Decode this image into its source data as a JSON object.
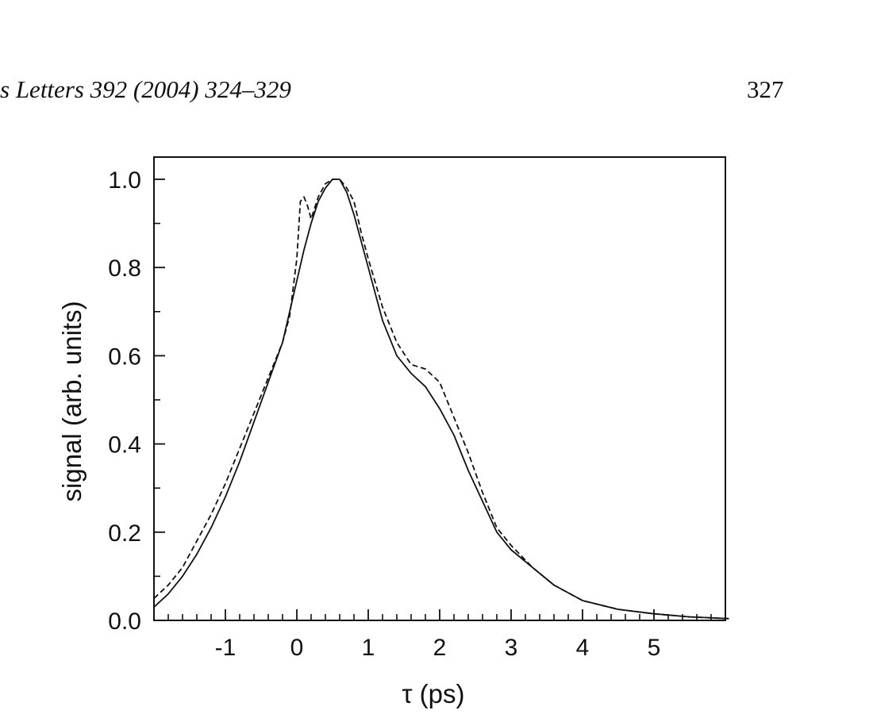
{
  "page": {
    "running_head": "s Letters 392 (2004) 324–329",
    "page_number": "327"
  },
  "chart_data": {
    "type": "line",
    "title": "",
    "xlabel": "τ (ps)",
    "ylabel": "signal (arb. units)",
    "xlim": [
      -2.0,
      6.05
    ],
    "ylim": [
      0.0,
      1.05
    ],
    "x_ticks": [
      -1,
      0,
      1,
      2,
      3,
      4,
      5
    ],
    "x_tick_labels": [
      "-1",
      "0",
      "1",
      "2",
      "3",
      "4",
      "5"
    ],
    "y_ticks": [
      0.0,
      0.2,
      0.4,
      0.6,
      0.8,
      1.0
    ],
    "y_tick_labels": [
      "0.0",
      "0.2",
      "0.4",
      "0.6",
      "0.8",
      "1.0"
    ],
    "grid": false,
    "legend": "none",
    "series": [
      {
        "style": "solid",
        "color": "#111111",
        "x": [
          -2.0,
          -1.8,
          -1.6,
          -1.4,
          -1.2,
          -1.0,
          -0.8,
          -0.6,
          -0.4,
          -0.2,
          0.0,
          0.1,
          0.2,
          0.3,
          0.4,
          0.5,
          0.6,
          0.7,
          0.8,
          0.9,
          1.0,
          1.2,
          1.4,
          1.6,
          1.8,
          2.0,
          2.2,
          2.4,
          2.6,
          2.8,
          3.0,
          3.3,
          3.6,
          4.0,
          4.5,
          5.0,
          5.5,
          6.05
        ],
        "y": [
          0.03,
          0.06,
          0.1,
          0.15,
          0.21,
          0.28,
          0.36,
          0.45,
          0.54,
          0.63,
          0.77,
          0.84,
          0.9,
          0.95,
          0.98,
          1.0,
          1.0,
          0.97,
          0.92,
          0.86,
          0.8,
          0.68,
          0.6,
          0.56,
          0.53,
          0.48,
          0.42,
          0.34,
          0.27,
          0.2,
          0.16,
          0.12,
          0.08,
          0.045,
          0.025,
          0.015,
          0.008,
          0.004
        ]
      },
      {
        "style": "dashed",
        "color": "#111111",
        "x": [
          -2.0,
          -1.8,
          -1.6,
          -1.4,
          -1.2,
          -1.0,
          -0.8,
          -0.6,
          -0.4,
          -0.2,
          -0.1,
          0.0,
          0.05,
          0.1,
          0.15,
          0.2,
          0.3,
          0.4,
          0.5,
          0.6,
          0.7,
          0.8,
          0.9,
          1.0,
          1.2,
          1.4,
          1.6,
          1.8,
          2.0,
          2.2,
          2.4,
          2.6,
          2.8,
          3.0,
          3.3,
          3.6,
          4.0,
          4.5,
          5.0,
          5.5,
          6.05
        ],
        "y": [
          0.05,
          0.08,
          0.12,
          0.18,
          0.24,
          0.31,
          0.39,
          0.47,
          0.55,
          0.63,
          0.69,
          0.82,
          0.95,
          0.96,
          0.94,
          0.91,
          0.96,
          0.99,
          1.0,
          1.0,
          0.98,
          0.95,
          0.88,
          0.82,
          0.71,
          0.63,
          0.58,
          0.57,
          0.54,
          0.46,
          0.38,
          0.29,
          0.21,
          0.17,
          0.12,
          0.08,
          0.045,
          0.025,
          0.015,
          0.008,
          0.004
        ]
      }
    ]
  }
}
